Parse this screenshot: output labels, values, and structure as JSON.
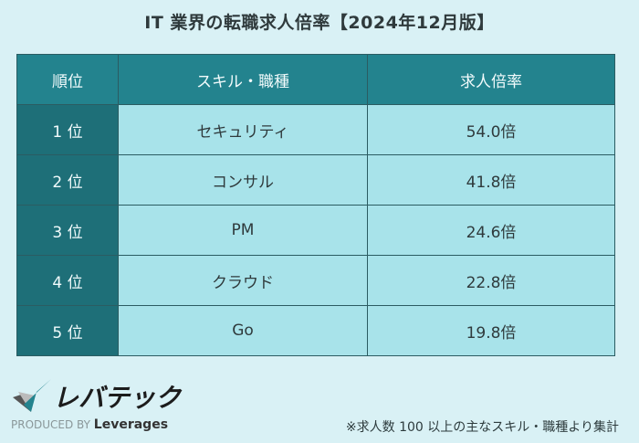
{
  "title": "IT 業界の転職求人倍率【2024年12月版】",
  "table": {
    "headers": [
      "順位",
      "スキル・職種",
      "求人倍率"
    ],
    "rows": [
      {
        "rank": "1 位",
        "skill": "セキュリティ",
        "ratio": "54.0倍"
      },
      {
        "rank": "2 位",
        "skill": "コンサル",
        "ratio": "41.8倍"
      },
      {
        "rank": "3 位",
        "skill": "PM",
        "ratio": "24.6倍"
      },
      {
        "rank": "4 位",
        "skill": "クラウド",
        "ratio": "22.8倍"
      },
      {
        "rank": "5 位",
        "skill": "Go",
        "ratio": "19.8倍"
      }
    ]
  },
  "footer": {
    "logo_text": "レバテック",
    "produced_by": "PRODUCED BY",
    "company": "Leverages",
    "note": "※求人数 100 以上の主なスキル・職種より集計"
  },
  "colors": {
    "header": "#23838e",
    "rank": "#1e6f78",
    "cell": "#a8e3ea",
    "background": "#d9f1f5"
  }
}
